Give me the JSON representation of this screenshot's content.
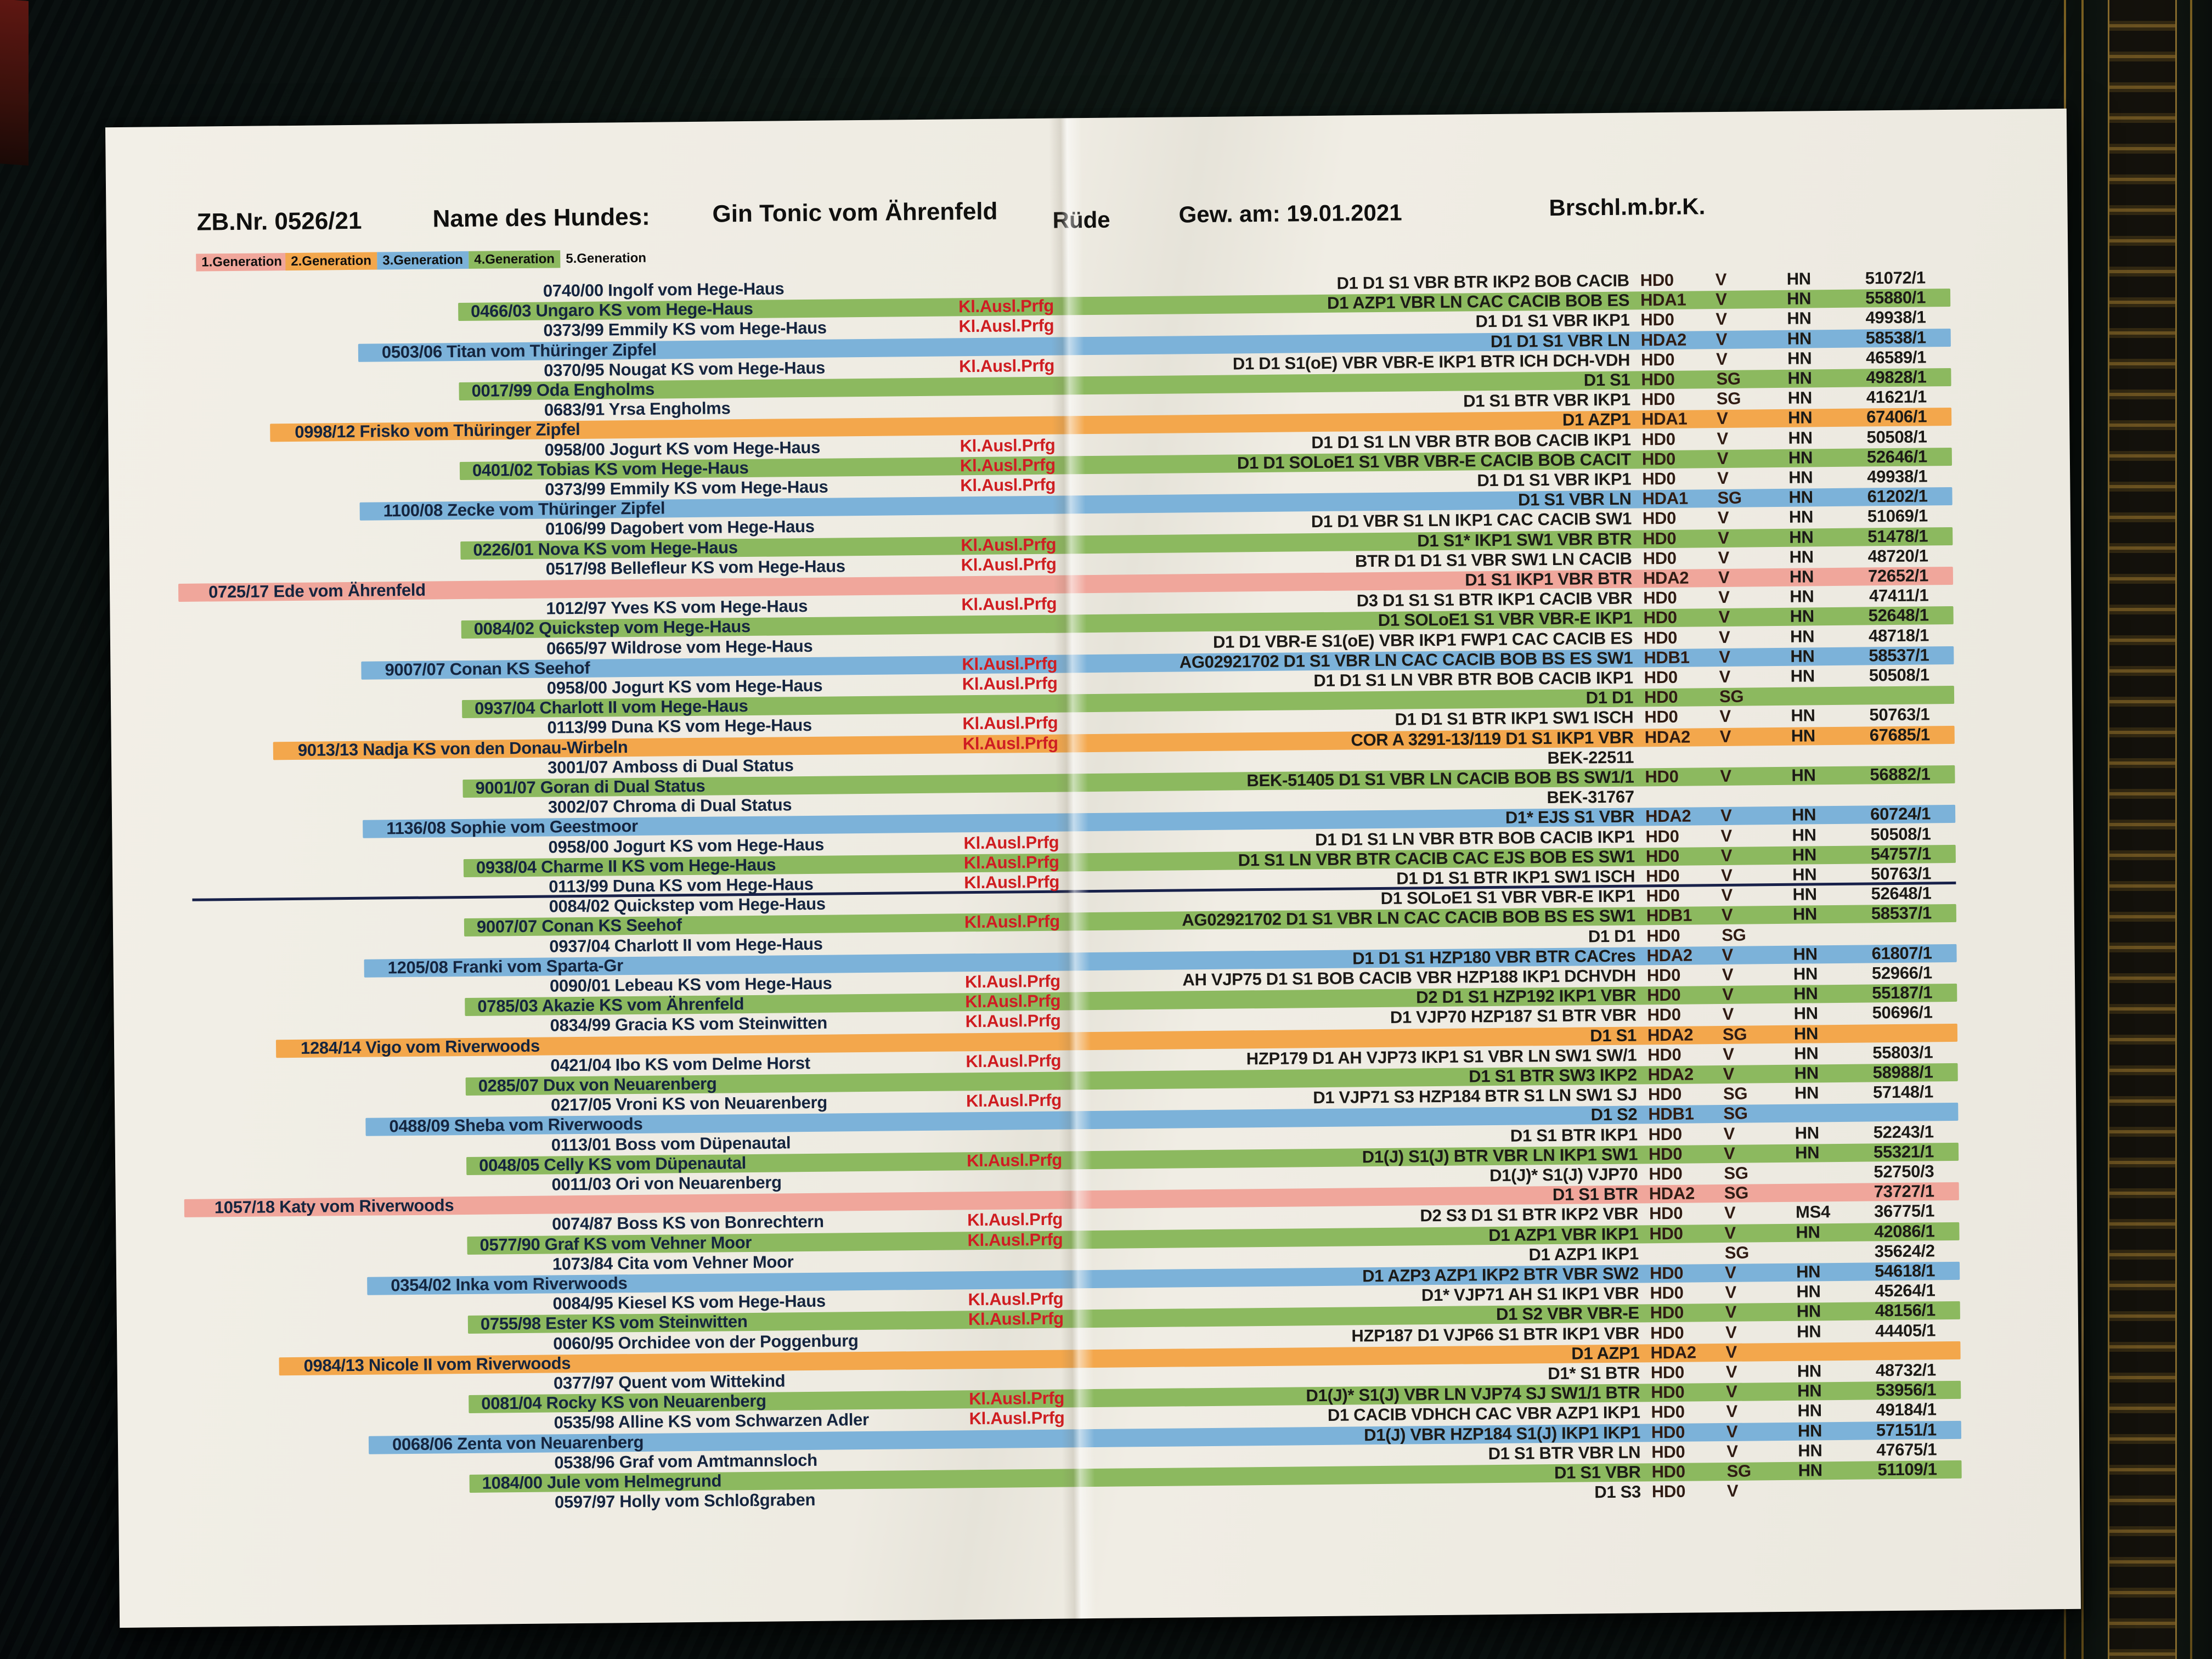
{
  "header": {
    "zb": "ZB.Nr. 0526/21",
    "name_label": "Name des Hundes:",
    "dog_name": "Gin Tonic vom Ährenfeld",
    "sex": "Rüde",
    "dob_label": "Gew. am:  19.01.2021",
    "breed": "Brschl.m.br.K."
  },
  "legend": {
    "items": [
      {
        "label": "1.Generation",
        "color": "#f0a69b"
      },
      {
        "label": "2.Generation",
        "color": "#f3a74c"
      },
      {
        "label": "3.Generation",
        "color": "#7cb2d9"
      },
      {
        "label": "4.Generation",
        "color": "#8cb95f"
      },
      {
        "label": "5.Generation",
        "color": null
      }
    ]
  },
  "kl_label": "Kl.Ausl.Prfg",
  "pedigree": {
    "divider_after_row": 31,
    "rows": [
      {
        "gen": 5,
        "name": "0740/00 Ingolf vom Hege-Haus",
        "kl": false,
        "result": "D1 D1 S1 VBR BTR IKP2 BOB CACIB",
        "hd": "HD0",
        "rating": "V",
        "reg": "HN",
        "num": "51072/1"
      },
      {
        "gen": 4,
        "name": "0466/03 Ungaro KS vom Hege-Haus",
        "kl": true,
        "result": "D1 AZP1 VBR LN CAC CACIB BOB ES",
        "hd": "HDA1",
        "rating": "V",
        "reg": "HN",
        "num": "55880/1"
      },
      {
        "gen": 5,
        "name": "0373/99 Emmily KS vom Hege-Haus",
        "kl": true,
        "result": "D1 D1 S1 VBR IKP1",
        "hd": "HD0",
        "rating": "V",
        "reg": "HN",
        "num": "49938/1"
      },
      {
        "gen": 3,
        "name": "0503/06 Titan vom Thüringer Zipfel",
        "kl": false,
        "result": "D1 D1 S1 VBR LN",
        "hd": "HDA2",
        "rating": "V",
        "reg": "HN",
        "num": "58538/1"
      },
      {
        "gen": 5,
        "name": "0370/95 Nougat KS vom Hege-Haus",
        "kl": true,
        "result": "D1 D1 S1(oE) VBR VBR-E IKP1 BTR ICH DCH-VDH",
        "hd": "HD0",
        "rating": "V",
        "reg": "HN",
        "num": "46589/1"
      },
      {
        "gen": 4,
        "name": "0017/99 Oda  Engholms",
        "kl": false,
        "result": "D1 S1",
        "hd": "HD0",
        "rating": "SG",
        "reg": "HN",
        "num": "49828/1"
      },
      {
        "gen": 5,
        "name": "0683/91 Yrsa  Engholms",
        "kl": false,
        "result": "D1 S1 BTR VBR IKP1",
        "hd": "HD0",
        "rating": "SG",
        "reg": "HN",
        "num": "41621/1"
      },
      {
        "gen": 2,
        "name": "0998/12 Frisko vom Thüringer Zipfel",
        "kl": false,
        "result": "D1 AZP1",
        "hd": "HDA1",
        "rating": "V",
        "reg": "HN",
        "num": "67406/1"
      },
      {
        "gen": 5,
        "name": "0958/00 Jogurt KS vom Hege-Haus",
        "kl": true,
        "result": "D1 D1 S1 LN VBR BTR BOB CACIB IKP1",
        "hd": "HD0",
        "rating": "V",
        "reg": "HN",
        "num": "50508/1"
      },
      {
        "gen": 4,
        "name": "0401/02 Tobias KS vom Hege-Haus",
        "kl": true,
        "result": "D1 D1 SOLoE1 S1 VBR VBR-E CACIB BOB CACIT",
        "hd": "HD0",
        "rating": "V",
        "reg": "HN",
        "num": "52646/1"
      },
      {
        "gen": 5,
        "name": "0373/99 Emmily KS vom Hege-Haus",
        "kl": true,
        "result": "D1 D1 S1 VBR IKP1",
        "hd": "HD0",
        "rating": "V",
        "reg": "HN",
        "num": "49938/1"
      },
      {
        "gen": 3,
        "name": "1100/08 Zecke vom Thüringer Zipfel",
        "kl": false,
        "result": "D1 S1 VBR LN",
        "hd": "HDA1",
        "rating": "SG",
        "reg": "HN",
        "num": "61202/1"
      },
      {
        "gen": 5,
        "name": "0106/99 Dagobert vom Hege-Haus",
        "kl": false,
        "result": "D1 D1 VBR S1 LN IKP1 CAC CACIB SW1",
        "hd": "HD0",
        "rating": "V",
        "reg": "HN",
        "num": "51069/1"
      },
      {
        "gen": 4,
        "name": "0226/01 Nova KS vom Hege-Haus",
        "kl": true,
        "result": "D1 S1* IKP1 SW1 VBR BTR",
        "hd": "HD0",
        "rating": "V",
        "reg": "HN",
        "num": "51478/1"
      },
      {
        "gen": 5,
        "name": "0517/98 Bellefleur KS vom Hege-Haus",
        "kl": true,
        "result": "BTR D1 D1 S1 VBR SW1 LN CACIB",
        "hd": "HD0",
        "rating": "V",
        "reg": "HN",
        "num": "48720/1"
      },
      {
        "gen": 1,
        "name": "0725/17 Ede vom Ährenfeld",
        "kl": false,
        "result": "D1 S1 IKP1 VBR BTR",
        "hd": "HDA2",
        "rating": "V",
        "reg": "HN",
        "num": "72652/1"
      },
      {
        "gen": 5,
        "name": "1012/97 Yves KS vom Hege-Haus",
        "kl": true,
        "result": "D3 D1 S1 S1 BTR IKP1 CACIB VBR",
        "hd": "HD0",
        "rating": "V",
        "reg": "HN",
        "num": "47411/1"
      },
      {
        "gen": 4,
        "name": "0084/02 Quickstep vom Hege-Haus",
        "kl": false,
        "result": "D1 SOLoE1 S1 VBR VBR-E IKP1",
        "hd": "HD0",
        "rating": "V",
        "reg": "HN",
        "num": "52648/1"
      },
      {
        "gen": 5,
        "name": "0665/97 Wildrose vom Hege-Haus",
        "kl": false,
        "result": "D1 D1 VBR-E S1(oE) VBR IKP1 FWP1 CAC CACIB ES",
        "hd": "HD0",
        "rating": "V",
        "reg": "HN",
        "num": "48718/1"
      },
      {
        "gen": 3,
        "name": "9007/07 Conan KS  Seehof",
        "kl": true,
        "result": "AG02921702 D1 S1 VBR LN CAC CACIB BOB BS ES SW1",
        "hd": "HDB1",
        "rating": "V",
        "reg": "HN",
        "num": "58537/1"
      },
      {
        "gen": 5,
        "name": "0958/00 Jogurt KS vom Hege-Haus",
        "kl": true,
        "result": "D1 D1 S1 LN VBR BTR BOB CACIB IKP1",
        "hd": "HD0",
        "rating": "V",
        "reg": "HN",
        "num": "50508/1"
      },
      {
        "gen": 4,
        "name": "0937/04 Charlott II vom Hege-Haus",
        "kl": false,
        "result": "D1 D1",
        "hd": "HD0",
        "rating": "SG",
        "reg": "",
        "num": ""
      },
      {
        "gen": 5,
        "name": "0113/99 Duna KS vom Hege-Haus",
        "kl": true,
        "result": "D1 D1 S1 BTR IKP1 SW1 ISCH",
        "hd": "HD0",
        "rating": "V",
        "reg": "HN",
        "num": "50763/1"
      },
      {
        "gen": 2,
        "name": "9013/13 Nadja KS von den Donau-Wirbeln",
        "kl": true,
        "result": "COR A 3291-13/119 D1 S1 IKP1 VBR",
        "hd": "HDA2",
        "rating": "V",
        "reg": "HN",
        "num": "67685/1"
      },
      {
        "gen": 5,
        "name": "3001/07 Amboss di Dual Status",
        "kl": false,
        "result": "BEK-22511",
        "hd": "",
        "rating": "",
        "reg": "",
        "num": ""
      },
      {
        "gen": 4,
        "name": "9001/07 Goran di Dual Status",
        "kl": false,
        "result": "BEK-51405 D1 S1 VBR LN CACIB BOB BS SW1/1",
        "hd": "HD0",
        "rating": "V",
        "reg": "HN",
        "num": "56882/1"
      },
      {
        "gen": 5,
        "name": "3002/07 Chroma di Dual Status",
        "kl": false,
        "result": "BEK-31767",
        "hd": "",
        "rating": "",
        "reg": "",
        "num": ""
      },
      {
        "gen": 3,
        "name": "1136/08 Sophie vom Geestmoor",
        "kl": false,
        "result": "D1* EJS S1 VBR",
        "hd": "HDA2",
        "rating": "V",
        "reg": "HN",
        "num": "60724/1"
      },
      {
        "gen": 5,
        "name": "0958/00 Jogurt KS vom Hege-Haus",
        "kl": true,
        "result": "D1 D1 S1 LN VBR BTR BOB CACIB IKP1",
        "hd": "HD0",
        "rating": "V",
        "reg": "HN",
        "num": "50508/1"
      },
      {
        "gen": 4,
        "name": "0938/04 Charme II KS vom Hege-Haus",
        "kl": true,
        "result": "D1 S1 LN VBR BTR CACIB CAC EJS BOB ES SW1",
        "hd": "HD0",
        "rating": "V",
        "reg": "HN",
        "num": "54757/1"
      },
      {
        "gen": 5,
        "name": "0113/99 Duna KS vom Hege-Haus",
        "kl": true,
        "result": "D1 D1 S1 BTR IKP1 SW1 ISCH",
        "hd": "HD0",
        "rating": "V",
        "reg": "HN",
        "num": "50763/1"
      },
      {
        "gen": 5,
        "name": "0084/02 Quickstep vom Hege-Haus",
        "kl": false,
        "result": "D1 SOLoE1 S1 VBR VBR-E IKP1",
        "hd": "HD0",
        "rating": "V",
        "reg": "HN",
        "num": "52648/1"
      },
      {
        "gen": 4,
        "name": "9007/07 Conan KS  Seehof",
        "kl": true,
        "result": "AG02921702 D1 S1 VBR LN CAC CACIB BOB BS ES SW1",
        "hd": "HDB1",
        "rating": "V",
        "reg": "HN",
        "num": "58537/1"
      },
      {
        "gen": 5,
        "name": "0937/04 Charlott II vom Hege-Haus",
        "kl": false,
        "result": "D1 D1",
        "hd": "HD0",
        "rating": "SG",
        "reg": "",
        "num": ""
      },
      {
        "gen": 3,
        "name": "1205/08 Franki vom Sparta-Gr",
        "kl": false,
        "result": "D1 D1 S1 HZP180 VBR BTR CACres",
        "hd": "HDA2",
        "rating": "V",
        "reg": "HN",
        "num": "61807/1"
      },
      {
        "gen": 5,
        "name": "0090/01 Lebeau KS vom Hege-Haus",
        "kl": true,
        "result": "AH VJP75 D1 S1 BOB CACIB VBR HZP188 IKP1 DCHVDH",
        "hd": "HD0",
        "rating": "V",
        "reg": "HN",
        "num": "52966/1"
      },
      {
        "gen": 4,
        "name": "0785/03 Akazie KS vom Ährenfeld",
        "kl": true,
        "result": "D2 D1 S1 HZP192 IKP1 VBR",
        "hd": "HD0",
        "rating": "V",
        "reg": "HN",
        "num": "55187/1"
      },
      {
        "gen": 5,
        "name": "0834/99 Gracia KS vom Steinwitten",
        "kl": true,
        "result": "D1 VJP70 HZP187 S1 BTR VBR",
        "hd": "HD0",
        "rating": "V",
        "reg": "HN",
        "num": "50696/1"
      },
      {
        "gen": 2,
        "name": "1284/14 Vigo vom Riverwoods",
        "kl": false,
        "result": "D1 S1",
        "hd": "HDA2",
        "rating": "SG",
        "reg": "HN",
        "num": ""
      },
      {
        "gen": 5,
        "name": "0421/04 Ibo KS vom Delme Horst",
        "kl": true,
        "result": "HZP179 D1 AH VJP73 IKP1 S1 VBR LN SW1 SW/1",
        "hd": "HD0",
        "rating": "V",
        "reg": "HN",
        "num": "55803/1"
      },
      {
        "gen": 4,
        "name": "0285/07 Dux von Neuarenberg",
        "kl": false,
        "result": "D1 S1 BTR SW3 IKP2",
        "hd": "HDA2",
        "rating": "V",
        "reg": "HN",
        "num": "58988/1"
      },
      {
        "gen": 5,
        "name": "0217/05 Vroni KS von Neuarenberg",
        "kl": true,
        "result": "D1 VJP71 S3 HZP184 BTR S1 LN SW1 SJ",
        "hd": "HD0",
        "rating": "SG",
        "reg": "HN",
        "num": "57148/1"
      },
      {
        "gen": 3,
        "name": "0488/09 Sheba vom Riverwoods",
        "kl": false,
        "result": "D1 S2",
        "hd": "HDB1",
        "rating": "SG",
        "reg": "",
        "num": ""
      },
      {
        "gen": 5,
        "name": "0113/01 Boss vom Düpenautal",
        "kl": false,
        "result": "D1 S1 BTR IKP1",
        "hd": "HD0",
        "rating": "V",
        "reg": "HN",
        "num": "52243/1"
      },
      {
        "gen": 4,
        "name": "0048/05 Celly KS vom Düpenautal",
        "kl": true,
        "result": "D1(J) S1(J) BTR VBR LN IKP1 SW1",
        "hd": "HD0",
        "rating": "V",
        "reg": "HN",
        "num": "55321/1"
      },
      {
        "gen": 5,
        "name": "0011/03 Ori von Neuarenberg",
        "kl": false,
        "result": "D1(J)* S1(J) VJP70",
        "hd": "HD0",
        "rating": "SG",
        "reg": "",
        "num": "52750/3"
      },
      {
        "gen": 1,
        "name": "1057/18 Katy vom Riverwoods",
        "kl": false,
        "result": "D1 S1 BTR",
        "hd": "HDA2",
        "rating": "SG",
        "reg": "",
        "num": "73727/1"
      },
      {
        "gen": 5,
        "name": "0074/87 Boss KS von Bonrechtern",
        "kl": true,
        "result": "D2 S3 D1 S1 BTR IKP2 VBR",
        "hd": "HD0",
        "rating": "V",
        "reg": "MS4",
        "num": "36775/1"
      },
      {
        "gen": 4,
        "name": "0577/90 Graf KS vom Vehner Moor",
        "kl": true,
        "result": "D1 AZP1 VBR IKP1",
        "hd": "HD0",
        "rating": "V",
        "reg": "HN",
        "num": "42086/1"
      },
      {
        "gen": 5,
        "name": "1073/84 Cita vom Vehner Moor",
        "kl": false,
        "result": "D1 AZP1 IKP1",
        "hd": "",
        "rating": "SG",
        "reg": "",
        "num": "35624/2"
      },
      {
        "gen": 3,
        "name": "0354/02 Inka vom Riverwoods",
        "kl": false,
        "result": "D1 AZP3 AZP1 IKP2 BTR VBR SW2",
        "hd": "HD0",
        "rating": "V",
        "reg": "HN",
        "num": "54618/1"
      },
      {
        "gen": 5,
        "name": "0084/95 Kiesel KS vom Hege-Haus",
        "kl": true,
        "result": "D1* VJP71 AH S1 IKP1 VBR",
        "hd": "HD0",
        "rating": "V",
        "reg": "HN",
        "num": "45264/1"
      },
      {
        "gen": 4,
        "name": "0755/98 Ester KS vom Steinwitten",
        "kl": true,
        "result": "D1 S2 VBR VBR-E",
        "hd": "HD0",
        "rating": "V",
        "reg": "HN",
        "num": "48156/1"
      },
      {
        "gen": 5,
        "name": "0060/95 Orchidee von der Poggenburg",
        "kl": false,
        "result": "HZP187 D1 VJP66 S1 BTR IKP1 VBR",
        "hd": "HD0",
        "rating": "V",
        "reg": "HN",
        "num": "44405/1"
      },
      {
        "gen": 2,
        "name": "0984/13 Nicole II vom Riverwoods",
        "kl": false,
        "result": "D1 AZP1",
        "hd": "HDA2",
        "rating": "V",
        "reg": "",
        "num": ""
      },
      {
        "gen": 5,
        "name": "0377/97 Quent vom Wittekind",
        "kl": false,
        "result": "D1* S1 BTR",
        "hd": "HD0",
        "rating": "V",
        "reg": "HN",
        "num": "48732/1"
      },
      {
        "gen": 4,
        "name": "0081/04 Rocky KS von Neuarenberg",
        "kl": true,
        "result": "D1(J)* S1(J) VBR LN VJP74 SJ SW1/1 BTR",
        "hd": "HD0",
        "rating": "V",
        "reg": "HN",
        "num": "53956/1"
      },
      {
        "gen": 5,
        "name": "0535/98 Alline KS vom Schwarzen Adler",
        "kl": true,
        "result": "D1 CACIB VDHCH CAC VBR AZP1 IKP1",
        "hd": "HD0",
        "rating": "V",
        "reg": "HN",
        "num": "49184/1"
      },
      {
        "gen": 3,
        "name": "0068/06 Zenta von Neuarenberg",
        "kl": false,
        "result": "D1(J) VBR HZP184 S1(J) IKP1 IKP1",
        "hd": "HD0",
        "rating": "V",
        "reg": "HN",
        "num": "57151/1"
      },
      {
        "gen": 5,
        "name": "0538/96 Graf vom Amtmannsloch",
        "kl": false,
        "result": "D1 S1 BTR VBR LN",
        "hd": "HD0",
        "rating": "V",
        "reg": "HN",
        "num": "47675/1"
      },
      {
        "gen": 4,
        "name": "1084/00 Jule vom Helmegrund",
        "kl": false,
        "result": "D1 S1 VBR",
        "hd": "HD0",
        "rating": "SG",
        "reg": "HN",
        "num": "51109/1"
      },
      {
        "gen": 5,
        "name": "0597/97 Holly vom Schloßgraben",
        "kl": false,
        "result": "D1 S3",
        "hd": "HD0",
        "rating": "V",
        "reg": "",
        "num": ""
      }
    ]
  }
}
